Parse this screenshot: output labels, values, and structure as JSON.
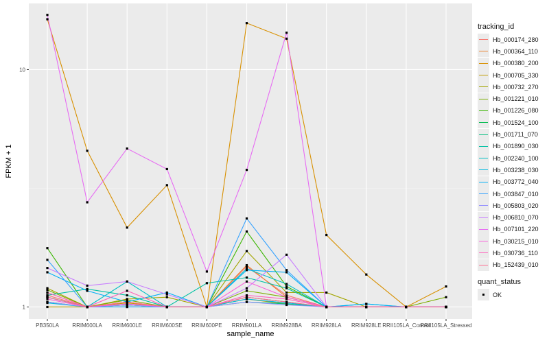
{
  "chart_data": {
    "type": "line",
    "xlabel": "sample_name",
    "ylabel": "FPKM + 1",
    "yscale": "log10",
    "ylim": [
      0.89,
      19
    ],
    "yticks": [
      {
        "value": 1,
        "label": "1"
      },
      {
        "value": 10,
        "label": "10"
      }
    ],
    "categories": [
      "PB350LA",
      "RRIM600LA",
      "RRIM600LE",
      "RRIM600SE",
      "RRIM600PE",
      "RRIM901LA",
      "RRIM928BA",
      "RRIM928LA",
      "RRIM928LE",
      "RRII105LA_Control",
      "RRII105LA_Stressed"
    ],
    "legend_title": "tracking_id",
    "legend_position": "right",
    "series": [
      {
        "name": "Hb_000174_280",
        "color": "#F8766D",
        "values": [
          1.12,
          1,
          1.02,
          1,
          1,
          1.48,
          1.12,
          1,
          1,
          1,
          1
        ]
      },
      {
        "name": "Hb_000364_110",
        "color": "#EA8331",
        "values": [
          1.15,
          1,
          1.05,
          1,
          1,
          1.5,
          1.1,
          1,
          1,
          1,
          1
        ]
      },
      {
        "name": "Hb_000380_200",
        "color": "#D89000",
        "values": [
          16.3,
          4.55,
          2.16,
          3.26,
          1,
          15.7,
          13.5,
          2.01,
          1.37,
          1,
          1.22
        ]
      },
      {
        "name": "Hb_000705_330",
        "color": "#C09B00",
        "values": [
          1.0,
          1,
          1.04,
          1,
          1,
          1.08,
          1.03,
          1,
          1,
          1,
          1
        ]
      },
      {
        "name": "Hb_000732_270",
        "color": "#A3A500",
        "values": [
          1.2,
          1,
          1.08,
          1.1,
          1,
          1.72,
          1.15,
          1.15,
          1,
          1,
          1
        ]
      },
      {
        "name": "Hb_001221_010",
        "color": "#7CAE00",
        "values": [
          1.18,
          1,
          1.07,
          1,
          1,
          1.17,
          1.1,
          1,
          1,
          1,
          1.1
        ]
      },
      {
        "name": "Hb_001226_080",
        "color": "#39B600",
        "values": [
          1.77,
          1,
          1,
          1,
          1,
          2.08,
          1.22,
          1,
          1,
          1,
          1
        ]
      },
      {
        "name": "Hb_001524_100",
        "color": "#00BB4E",
        "values": [
          1.05,
          1,
          1.02,
          1,
          1,
          1.1,
          1.05,
          1,
          1,
          1,
          1
        ]
      },
      {
        "name": "Hb_001711_070",
        "color": "#00BF7D",
        "values": [
          1.1,
          1,
          1.02,
          1,
          1,
          1.05,
          1.03,
          1,
          1,
          1,
          1
        ]
      },
      {
        "name": "Hb_001890_030",
        "color": "#00C1A3",
        "values": [
          1.12,
          1.19,
          1.12,
          1,
          1.26,
          1.33,
          1.2,
          1,
          1,
          1,
          1
        ]
      },
      {
        "name": "Hb_002240_100",
        "color": "#00BFC4",
        "values": [
          1.1,
          1,
          1.28,
          1,
          1,
          1.45,
          1.25,
          1,
          1,
          1,
          1
        ]
      },
      {
        "name": "Hb_003238_030",
        "color": "#00BAE0",
        "values": [
          1.04,
          1,
          1,
          1,
          1,
          1.08,
          1.04,
          1,
          1.03,
          1,
          1
        ]
      },
      {
        "name": "Hb_003772_040",
        "color": "#00B0F6",
        "values": [
          1.4,
          1.17,
          1.05,
          1.15,
          1,
          1.43,
          1.4,
          1,
          1.03,
          1,
          1
        ]
      },
      {
        "name": "Hb_003847_010",
        "color": "#35A2FF",
        "values": [
          1.58,
          1,
          1,
          1,
          1,
          2.36,
          1.43,
          1,
          1,
          1,
          1
        ]
      },
      {
        "name": "Hb_005803_020",
        "color": "#9590FF",
        "values": [
          1.05,
          1,
          1.02,
          1,
          1,
          1.05,
          1.02,
          1,
          1,
          1,
          1
        ]
      },
      {
        "name": "Hb_006810_070",
        "color": "#C77CFF",
        "values": [
          1.46,
          1.23,
          1.28,
          1.13,
          1,
          1.2,
          1.66,
          1,
          1,
          1,
          1
        ]
      },
      {
        "name": "Hb_007101_220",
        "color": "#E76BF3",
        "values": [
          17.0,
          2.76,
          4.65,
          3.81,
          1.41,
          3.78,
          14.3,
          1,
          1,
          1,
          1
        ]
      },
      {
        "name": "Hb_030215_010",
        "color": "#FA62DB",
        "values": [
          1.08,
          1,
          1.03,
          1,
          1,
          1.28,
          1.1,
          1,
          1,
          1,
          1
        ]
      },
      {
        "name": "Hb_030736_110",
        "color": "#FF62BC",
        "values": [
          1.15,
          1,
          1.17,
          1,
          1,
          1.12,
          1.08,
          1,
          1,
          1,
          1
        ]
      },
      {
        "name": "Hb_152439_010",
        "color": "#FF6C91",
        "values": [
          1.1,
          1,
          1.05,
          1,
          1,
          1.1,
          1.05,
          1,
          1,
          1,
          1
        ]
      }
    ],
    "quant_status": {
      "title": "quant_status",
      "entries": [
        "OK"
      ]
    }
  }
}
